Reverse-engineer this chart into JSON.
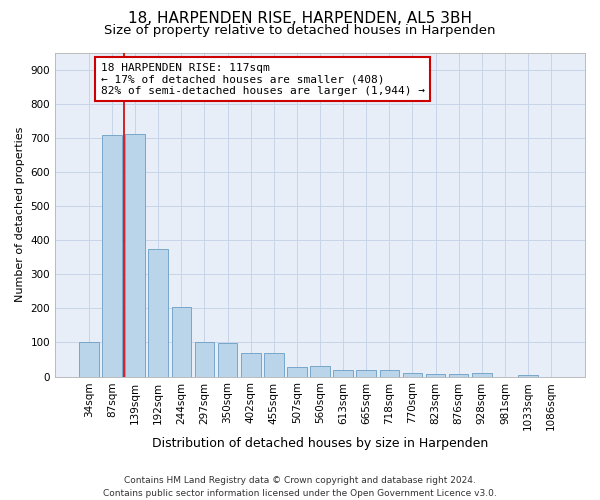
{
  "title1": "18, HARPENDEN RISE, HARPENDEN, AL5 3BH",
  "title2": "Size of property relative to detached houses in Harpenden",
  "xlabel": "Distribution of detached houses by size in Harpenden",
  "ylabel": "Number of detached properties",
  "categories": [
    "34sqm",
    "87sqm",
    "139sqm",
    "192sqm",
    "244sqm",
    "297sqm",
    "350sqm",
    "402sqm",
    "455sqm",
    "507sqm",
    "560sqm",
    "613sqm",
    "665sqm",
    "718sqm",
    "770sqm",
    "823sqm",
    "876sqm",
    "928sqm",
    "981sqm",
    "1033sqm",
    "1086sqm"
  ],
  "values": [
    100,
    707,
    710,
    375,
    205,
    100,
    98,
    70,
    70,
    28,
    30,
    18,
    20,
    18,
    10,
    8,
    8,
    10,
    0,
    5,
    0
  ],
  "bar_color": "#bad4ea",
  "bar_edge_color": "#6a9ec5",
  "vline_color": "#cc0000",
  "vline_x": 1.5,
  "annotation_text": "18 HARPENDEN RISE: 117sqm\n← 17% of detached houses are smaller (408)\n82% of semi-detached houses are larger (1,944) →",
  "annotation_box_color": "white",
  "annotation_box_edge": "#cc0000",
  "ylim": [
    0,
    950
  ],
  "yticks": [
    0,
    100,
    200,
    300,
    400,
    500,
    600,
    700,
    800,
    900
  ],
  "grid_color": "#c8d4e8",
  "bg_color": "#e8eef8",
  "footer": "Contains HM Land Registry data © Crown copyright and database right 2024.\nContains public sector information licensed under the Open Government Licence v3.0.",
  "title1_fontsize": 11,
  "title2_fontsize": 9.5,
  "xlabel_fontsize": 9,
  "ylabel_fontsize": 8,
  "tick_fontsize": 7.5,
  "annotation_fontsize": 8,
  "footer_fontsize": 6.5
}
